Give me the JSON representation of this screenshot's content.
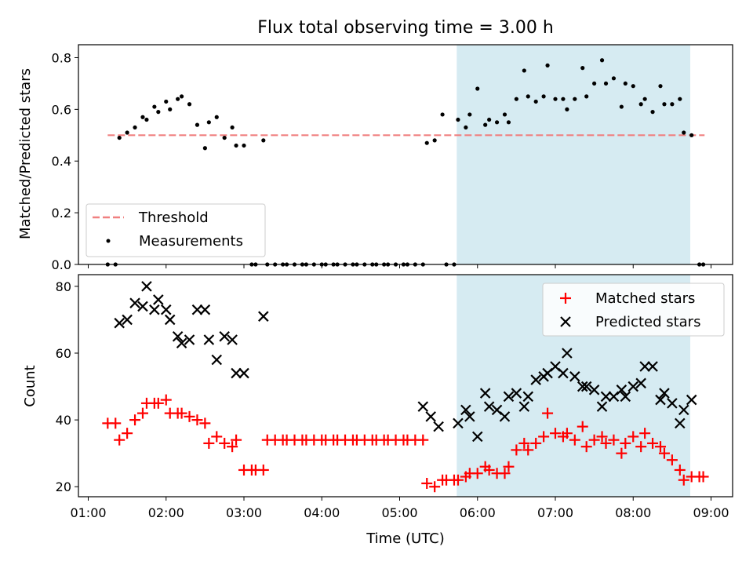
{
  "figure": {
    "title": "Flux total observing time = 3.00 h"
  },
  "chart_data": [
    {
      "type": "scatter",
      "ylabel": "Matched/Predicted stars",
      "xlim": [
        "01:00",
        "09:00"
      ],
      "ylim": [
        0,
        0.85
      ],
      "yticks": [
        "0.0",
        "0.2",
        "0.4",
        "0.6",
        "0.8"
      ],
      "shaded_interval": {
        "start": "05:44",
        "end": "08:44",
        "color": "#add8e6"
      },
      "threshold": {
        "label": "Threshold",
        "value": 0.5,
        "x_start": "01:15",
        "x_end": "08:55",
        "color": "#f08080"
      },
      "legend": {
        "position": "lower left",
        "entries": [
          "Threshold",
          "Measurements"
        ]
      },
      "series": [
        {
          "name": "Measurements",
          "color": "#000000",
          "points": [
            [
              "01:15",
              0
            ],
            [
              "01:21",
              0
            ],
            [
              "01:24",
              0.49
            ],
            [
              "01:30",
              0.51
            ],
            [
              "01:36",
              0.53
            ],
            [
              "01:42",
              0.57
            ],
            [
              "01:45",
              0.56
            ],
            [
              "01:51",
              0.61
            ],
            [
              "01:54",
              0.59
            ],
            [
              "02:00",
              0.63
            ],
            [
              "02:03",
              0.6
            ],
            [
              "02:09",
              0.64
            ],
            [
              "02:12",
              0.65
            ],
            [
              "02:18",
              0.62
            ],
            [
              "02:24",
              0.54
            ],
            [
              "02:30",
              0.45
            ],
            [
              "02:33",
              0.55
            ],
            [
              "02:39",
              0.57
            ],
            [
              "02:45",
              0.49
            ],
            [
              "02:51",
              0.53
            ],
            [
              "02:54",
              0.46
            ],
            [
              "03:00",
              0.46
            ],
            [
              "03:06",
              0
            ],
            [
              "03:09",
              0
            ],
            [
              "03:15",
              0.48
            ],
            [
              "03:18",
              0
            ],
            [
              "03:24",
              0
            ],
            [
              "03:30",
              0
            ],
            [
              "03:33",
              0
            ],
            [
              "03:39",
              0
            ],
            [
              "03:45",
              0
            ],
            [
              "03:48",
              0
            ],
            [
              "03:54",
              0
            ],
            [
              "04:00",
              0
            ],
            [
              "04:03",
              0
            ],
            [
              "04:09",
              0
            ],
            [
              "04:12",
              0
            ],
            [
              "04:18",
              0
            ],
            [
              "04:24",
              0
            ],
            [
              "04:27",
              0
            ],
            [
              "04:33",
              0
            ],
            [
              "04:39",
              0
            ],
            [
              "04:42",
              0
            ],
            [
              "04:48",
              0
            ],
            [
              "04:51",
              0
            ],
            [
              "04:57",
              0
            ],
            [
              "05:03",
              0
            ],
            [
              "05:06",
              0
            ],
            [
              "05:12",
              0
            ],
            [
              "05:18",
              0
            ],
            [
              "05:21",
              0.47
            ],
            [
              "05:27",
              0.48
            ],
            [
              "05:33",
              0.58
            ],
            [
              "05:36",
              0
            ],
            [
              "05:42",
              0
            ],
            [
              "05:45",
              0.56
            ],
            [
              "05:51",
              0.53
            ],
            [
              "05:54",
              0.58
            ],
            [
              "06:00",
              0.68
            ],
            [
              "06:06",
              0.54
            ],
            [
              "06:09",
              0.56
            ],
            [
              "06:15",
              0.55
            ],
            [
              "06:21",
              0.58
            ],
            [
              "06:24",
              0.55
            ],
            [
              "06:30",
              0.64
            ],
            [
              "06:36",
              0.75
            ],
            [
              "06:39",
              0.65
            ],
            [
              "06:45",
              0.63
            ],
            [
              "06:51",
              0.65
            ],
            [
              "06:54",
              0.77
            ],
            [
              "07:00",
              0.64
            ],
            [
              "07:06",
              0.64
            ],
            [
              "07:09",
              0.6
            ],
            [
              "07:15",
              0.64
            ],
            [
              "07:21",
              0.76
            ],
            [
              "07:24",
              0.65
            ],
            [
              "07:30",
              0.7
            ],
            [
              "07:36",
              0.79
            ],
            [
              "07:39",
              0.7
            ],
            [
              "07:45",
              0.72
            ],
            [
              "07:51",
              0.61
            ],
            [
              "07:54",
              0.7
            ],
            [
              "08:00",
              0.69
            ],
            [
              "08:06",
              0.62
            ],
            [
              "08:09",
              0.64
            ],
            [
              "08:15",
              0.59
            ],
            [
              "08:21",
              0.69
            ],
            [
              "08:24",
              0.62
            ],
            [
              "08:30",
              0.62
            ],
            [
              "08:36",
              0.64
            ],
            [
              "08:39",
              0.51
            ],
            [
              "08:45",
              0.5
            ],
            [
              "08:51",
              0
            ],
            [
              "08:54",
              0
            ]
          ]
        }
      ]
    },
    {
      "type": "scatter",
      "xlabel": "Time (UTC)",
      "ylabel": "Count",
      "xlim": [
        "01:00",
        "09:00"
      ],
      "ylim": [
        17,
        83.5
      ],
      "xticks": [
        "01:00",
        "02:00",
        "03:00",
        "04:00",
        "05:00",
        "06:00",
        "07:00",
        "08:00",
        "09:00"
      ],
      "yticks": [
        "20",
        "40",
        "60",
        "80"
      ],
      "shaded_interval": {
        "start": "05:44",
        "end": "08:44",
        "color": "#add8e6"
      },
      "legend": {
        "position": "upper right",
        "entries": [
          "Matched stars",
          "Predicted stars"
        ]
      },
      "series": [
        {
          "name": "Matched stars",
          "marker": "+",
          "color": "#ff0000",
          "points": [
            [
              "01:15",
              39
            ],
            [
              "01:21",
              39
            ],
            [
              "01:24",
              34
            ],
            [
              "01:30",
              36
            ],
            [
              "01:36",
              40
            ],
            [
              "01:42",
              42
            ],
            [
              "01:45",
              45
            ],
            [
              "01:51",
              45
            ],
            [
              "01:54",
              45
            ],
            [
              "02:00",
              46
            ],
            [
              "02:03",
              42
            ],
            [
              "02:09",
              42
            ],
            [
              "02:12",
              42
            ],
            [
              "02:18",
              41
            ],
            [
              "02:24",
              40
            ],
            [
              "02:30",
              39
            ],
            [
              "02:33",
              33
            ],
            [
              "02:39",
              35
            ],
            [
              "02:45",
              33
            ],
            [
              "02:51",
              32
            ],
            [
              "02:54",
              34
            ],
            [
              "03:00",
              25
            ],
            [
              "03:06",
              25
            ],
            [
              "03:09",
              25
            ],
            [
              "03:15",
              25
            ],
            [
              "03:18",
              34
            ],
            [
              "03:24",
              34
            ],
            [
              "03:30",
              34
            ],
            [
              "03:33",
              34
            ],
            [
              "03:39",
              34
            ],
            [
              "03:45",
              34
            ],
            [
              "03:48",
              34
            ],
            [
              "03:54",
              34
            ],
            [
              "04:00",
              34
            ],
            [
              "04:03",
              34
            ],
            [
              "04:09",
              34
            ],
            [
              "04:12",
              34
            ],
            [
              "04:18",
              34
            ],
            [
              "04:24",
              34
            ],
            [
              "04:27",
              34
            ],
            [
              "04:33",
              34
            ],
            [
              "04:39",
              34
            ],
            [
              "04:42",
              34
            ],
            [
              "04:48",
              34
            ],
            [
              "04:51",
              34
            ],
            [
              "04:57",
              34
            ],
            [
              "05:03",
              34
            ],
            [
              "05:06",
              34
            ],
            [
              "05:12",
              34
            ],
            [
              "05:18",
              34
            ],
            [
              "05:21",
              21
            ],
            [
              "05:27",
              20
            ],
            [
              "05:33",
              22
            ],
            [
              "05:36",
              22
            ],
            [
              "05:42",
              22
            ],
            [
              "05:45",
              22
            ],
            [
              "05:51",
              23
            ],
            [
              "05:54",
              24
            ],
            [
              "06:00",
              24
            ],
            [
              "06:06",
              26
            ],
            [
              "06:09",
              25
            ],
            [
              "06:15",
              24
            ],
            [
              "06:21",
              24
            ],
            [
              "06:24",
              26
            ],
            [
              "06:30",
              31
            ],
            [
              "06:36",
              33
            ],
            [
              "06:39",
              31
            ],
            [
              "06:45",
              33
            ],
            [
              "06:51",
              35
            ],
            [
              "06:54",
              42
            ],
            [
              "07:00",
              36
            ],
            [
              "07:06",
              35
            ],
            [
              "07:09",
              36
            ],
            [
              "07:15",
              34
            ],
            [
              "07:21",
              38
            ],
            [
              "07:24",
              32
            ],
            [
              "07:30",
              34
            ],
            [
              "07:36",
              35
            ],
            [
              "07:39",
              33
            ],
            [
              "07:45",
              34
            ],
            [
              "07:51",
              30
            ],
            [
              "07:54",
              33
            ],
            [
              "08:00",
              35
            ],
            [
              "08:06",
              32
            ],
            [
              "08:09",
              36
            ],
            [
              "08:15",
              33
            ],
            [
              "08:21",
              32
            ],
            [
              "08:24",
              30
            ],
            [
              "08:30",
              28
            ],
            [
              "08:36",
              25
            ],
            [
              "08:39",
              22
            ],
            [
              "08:45",
              23
            ],
            [
              "08:51",
              23
            ],
            [
              "08:54",
              23
            ]
          ]
        },
        {
          "name": "Predicted stars",
          "marker": "x",
          "color": "#000000",
          "points": [
            [
              "01:24",
              69
            ],
            [
              "01:30",
              70
            ],
            [
              "01:36",
              75
            ],
            [
              "01:42",
              74
            ],
            [
              "01:45",
              80
            ],
            [
              "01:51",
              73
            ],
            [
              "01:54",
              76
            ],
            [
              "02:00",
              73
            ],
            [
              "02:03",
              70
            ],
            [
              "02:09",
              65
            ],
            [
              "02:12",
              63
            ],
            [
              "02:18",
              64
            ],
            [
              "02:24",
              73
            ],
            [
              "02:30",
              73
            ],
            [
              "02:33",
              64
            ],
            [
              "02:39",
              58
            ],
            [
              "02:45",
              65
            ],
            [
              "02:51",
              64
            ],
            [
              "02:54",
              54
            ],
            [
              "03:00",
              54
            ],
            [
              "03:15",
              71
            ],
            [
              "05:18",
              44
            ],
            [
              "05:24",
              41
            ],
            [
              "05:30",
              38
            ],
            [
              "05:45",
              39
            ],
            [
              "05:51",
              43
            ],
            [
              "05:54",
              41
            ],
            [
              "06:00",
              35
            ],
            [
              "06:06",
              48
            ],
            [
              "06:09",
              44
            ],
            [
              "06:15",
              43
            ],
            [
              "06:21",
              41
            ],
            [
              "06:24",
              47
            ],
            [
              "06:30",
              48
            ],
            [
              "06:36",
              44
            ],
            [
              "06:39",
              47
            ],
            [
              "06:45",
              52
            ],
            [
              "06:51",
              53
            ],
            [
              "06:54",
              54
            ],
            [
              "07:00",
              56
            ],
            [
              "07:06",
              54
            ],
            [
              "07:09",
              60
            ],
            [
              "07:15",
              53
            ],
            [
              "07:21",
              50
            ],
            [
              "07:24",
              50
            ],
            [
              "07:30",
              49
            ],
            [
              "07:36",
              44
            ],
            [
              "07:39",
              47
            ],
            [
              "07:45",
              47
            ],
            [
              "07:51",
              49
            ],
            [
              "07:54",
              47
            ],
            [
              "08:00",
              50
            ],
            [
              "08:06",
              51
            ],
            [
              "08:09",
              56
            ],
            [
              "08:15",
              56
            ],
            [
              "08:21",
              46
            ],
            [
              "08:24",
              48
            ],
            [
              "08:30",
              45
            ],
            [
              "08:36",
              39
            ],
            [
              "08:39",
              43
            ],
            [
              "08:45",
              46
            ]
          ]
        }
      ]
    }
  ]
}
